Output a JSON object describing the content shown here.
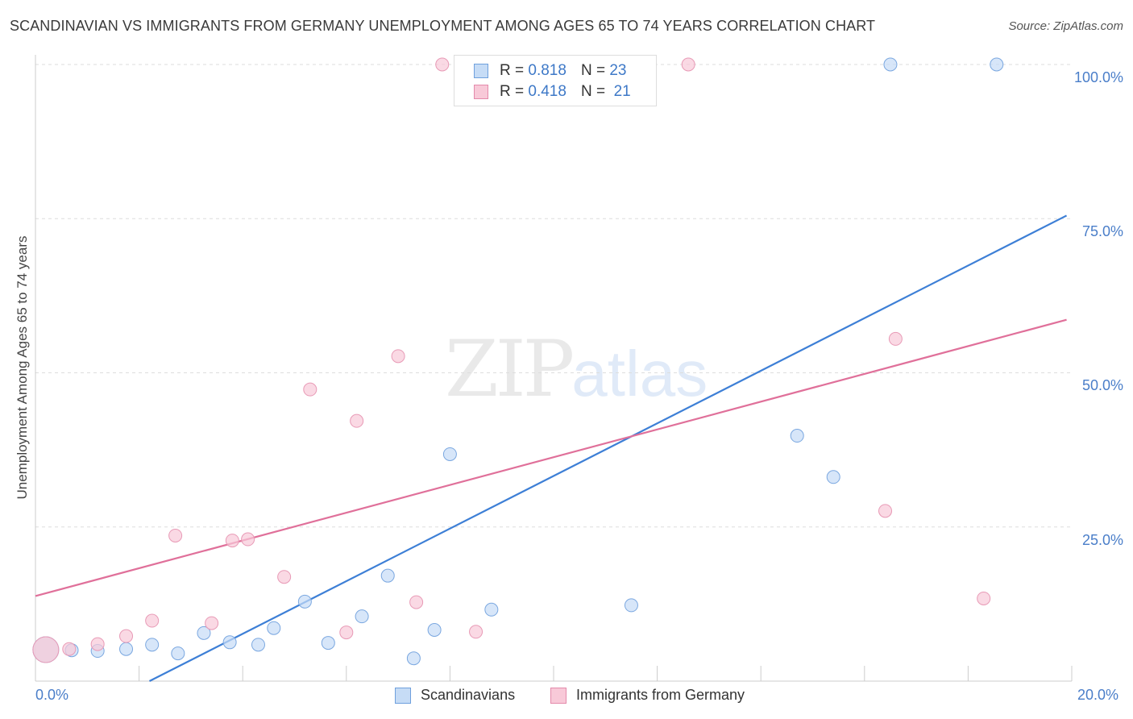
{
  "header": {
    "title": "SCANDINAVIAN VS IMMIGRANTS FROM GERMANY UNEMPLOYMENT AMONG AGES 65 TO 74 YEARS CORRELATION CHART",
    "source": "Source: ZipAtlas.com"
  },
  "watermark": {
    "zip": "ZIP",
    "atlas": "atlas"
  },
  "legend": {
    "r_label": "R =",
    "n_label": "N =",
    "blue": {
      "r": "0.818",
      "n": "23"
    },
    "pink": {
      "r": "0.418",
      "n": "21"
    }
  },
  "bottom_legend": {
    "blue_label": "Scandinavians",
    "pink_label": "Immigrants from Germany"
  },
  "colors": {
    "blue": "#3d7fd6",
    "pink": "#e0709a",
    "blue_fill": "#c6dcf6",
    "pink_fill": "#f8c9d8",
    "grid": "#dddddd",
    "tick_text": "#4a7ec9"
  },
  "chart_data": {
    "type": "scatter",
    "title": "SCANDINAVIAN VS IMMIGRANTS FROM GERMANY UNEMPLOYMENT AMONG AGES 65 TO 74 YEARS CORRELATION CHART",
    "xlabel": "",
    "ylabel": "Unemployment Among Ages 65 to 74 years",
    "xlim": [
      0,
      20
    ],
    "ylim": [
      0,
      100
    ],
    "x_tick_labels": [
      "0.0%",
      "20.0%"
    ],
    "y_tick_labels": [
      "100.0%",
      "75.0%",
      "50.0%",
      "25.0%"
    ],
    "y_tick_values": [
      100,
      75,
      50,
      25
    ],
    "grid": true,
    "series": [
      {
        "name": "Scandinavians",
        "color": "blue",
        "r": 0.818,
        "n": 23,
        "points": [
          [
            0.2,
            5.1,
            "large"
          ],
          [
            0.7,
            5.0
          ],
          [
            1.2,
            4.9
          ],
          [
            1.75,
            5.2
          ],
          [
            2.25,
            5.9
          ],
          [
            2.75,
            4.5
          ],
          [
            3.25,
            7.8
          ],
          [
            3.75,
            6.3
          ],
          [
            4.3,
            5.9
          ],
          [
            4.6,
            8.6
          ],
          [
            5.2,
            12.9
          ],
          [
            5.65,
            6.2
          ],
          [
            6.3,
            10.5
          ],
          [
            6.8,
            17.1
          ],
          [
            7.3,
            3.7
          ],
          [
            7.7,
            8.3
          ],
          [
            8.0,
            36.8
          ],
          [
            8.8,
            11.6
          ],
          [
            11.5,
            12.3
          ],
          [
            14.7,
            39.8
          ],
          [
            15.4,
            33.1
          ],
          [
            16.5,
            100.0
          ],
          [
            18.55,
            100.0
          ]
        ],
        "trend": {
          "x": [
            2.2,
            19.9
          ],
          "y": [
            0.0,
            75.5
          ]
        }
      },
      {
        "name": "Immigrants from Germany",
        "color": "pink",
        "r": 0.418,
        "n": 21,
        "points": [
          [
            0.2,
            5.1,
            "large"
          ],
          [
            0.65,
            5.2
          ],
          [
            1.2,
            6.0
          ],
          [
            1.75,
            7.3
          ],
          [
            2.25,
            9.8
          ],
          [
            2.7,
            23.6
          ],
          [
            3.4,
            9.4
          ],
          [
            3.8,
            22.8
          ],
          [
            4.1,
            23.0
          ],
          [
            4.8,
            16.9
          ],
          [
            5.3,
            47.3
          ],
          [
            6.0,
            7.9
          ],
          [
            6.2,
            42.2
          ],
          [
            7.0,
            52.7
          ],
          [
            7.35,
            12.8
          ],
          [
            7.85,
            100.0
          ],
          [
            8.5,
            8.0
          ],
          [
            12.6,
            100.0
          ],
          [
            16.4,
            27.6
          ],
          [
            16.6,
            55.5
          ],
          [
            18.3,
            13.4
          ]
        ],
        "trend": {
          "x": [
            0.0,
            19.9
          ],
          "y": [
            13.8,
            58.6
          ]
        }
      }
    ]
  }
}
